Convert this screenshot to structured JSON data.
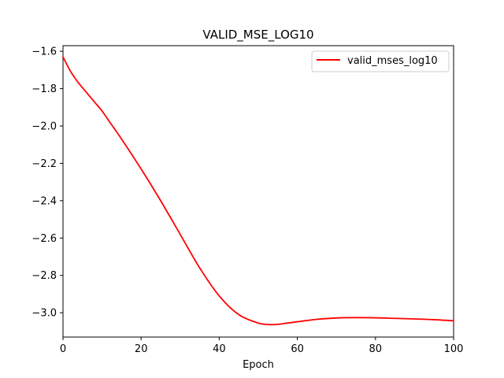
{
  "chart_data": {
    "type": "line",
    "title": "VALID_MSE_LOG10",
    "xlabel": "Epoch",
    "ylabel": "",
    "xlim": [
      0,
      100
    ],
    "ylim": [
      -3.13,
      -1.57
    ],
    "xticks": [
      0,
      20,
      40,
      60,
      80,
      100
    ],
    "xtick_labels": [
      "0",
      "20",
      "40",
      "60",
      "80",
      "100"
    ],
    "yticks": [
      -1.6,
      -1.8,
      -2.0,
      -2.2,
      -2.4,
      -2.6,
      -2.8,
      -3.0
    ],
    "ytick_labels": [
      "−1.6",
      "−1.8",
      "−2.0",
      "−2.2",
      "−2.4",
      "−2.6",
      "−2.8",
      "−3.0"
    ],
    "grid": false,
    "legend_position": "top-right",
    "series": [
      {
        "name": "valid_mses_log10",
        "color": "#ff0000",
        "x": [
          0,
          2,
          4,
          6,
          8,
          10,
          12,
          15,
          20,
          25,
          30,
          35,
          40,
          45,
          50,
          53,
          55,
          60,
          65,
          70,
          75,
          80,
          85,
          90,
          95,
          100
        ],
        "y": [
          -1.63,
          -1.71,
          -1.77,
          -1.82,
          -1.87,
          -1.92,
          -1.98,
          -2.07,
          -2.23,
          -2.4,
          -2.58,
          -2.76,
          -2.91,
          -3.01,
          -3.055,
          -3.063,
          -3.062,
          -3.048,
          -3.035,
          -3.028,
          -3.026,
          -3.027,
          -3.03,
          -3.033,
          -3.037,
          -3.043
        ]
      }
    ]
  }
}
